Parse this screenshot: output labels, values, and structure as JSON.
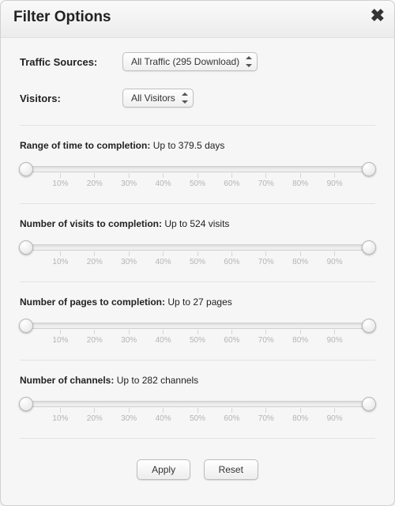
{
  "dialog": {
    "title": "Filter Options"
  },
  "filters": {
    "traffic_sources": {
      "label": "Traffic Sources:",
      "selected": "All Traffic (295 Download)"
    },
    "visitors": {
      "label": "Visitors:",
      "selected": "All Visitors"
    }
  },
  "sliders": {
    "tick_labels": [
      "10%",
      "20%",
      "30%",
      "40%",
      "50%",
      "60%",
      "70%",
      "80%",
      "90%"
    ],
    "tick_positions_pct": [
      10,
      20,
      30,
      40,
      50,
      60,
      70,
      80,
      90
    ],
    "handle_min_pct": 0,
    "handle_max_pct": 100,
    "items": [
      {
        "label": "Range of time to completion:",
        "value_text": "Up to 379.5 days"
      },
      {
        "label": "Number of visits to completion:",
        "value_text": "Up to 524 visits"
      },
      {
        "label": "Number of pages to completion:",
        "value_text": "Up to 27 pages"
      },
      {
        "label": "Number of channels:",
        "value_text": "Up to 282 channels"
      }
    ]
  },
  "buttons": {
    "apply": "Apply",
    "reset": "Reset"
  },
  "style": {
    "track_color_top": "#e8e8e8",
    "track_color_bottom": "#f1f1f1",
    "handle_highlight": "#ffffff",
    "handle_shadow": "#e4e4e4",
    "tick_color": "#d6d6d6",
    "tick_label_color": "#b4b4b4",
    "dialog_bg": "#f6f6f6",
    "border_color": "#d0d0d0"
  }
}
